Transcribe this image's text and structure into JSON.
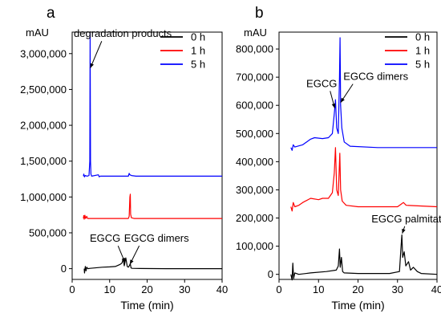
{
  "figure": {
    "panel_a_letter": "a",
    "panel_b_letter": "b"
  },
  "chart_data": [
    {
      "type": "line",
      "panel": "a",
      "xlabel": "Time (min)",
      "ylabel": "mAU",
      "xlim": [
        0,
        40
      ],
      "ylim": [
        -150000,
        3300000
      ],
      "x_ticks": [
        0,
        10,
        20,
        30,
        40
      ],
      "y_ticks": [
        0,
        500000,
        1000000,
        1500000,
        2000000,
        2500000,
        3000000
      ],
      "x_tick_labels": [
        "0",
        "10",
        "20",
        "30",
        "40"
      ],
      "y_tick_labels": [
        "0",
        "500,000",
        "1,000,000",
        "1,500,000",
        "2,000,000",
        "2,500,000",
        "3,000,000"
      ],
      "legend_placement": "top-right",
      "legend": [
        {
          "name": "0 h",
          "color": "#000000"
        },
        {
          "name": "1 h",
          "color": "#ff0000"
        },
        {
          "name": "5 h",
          "color": "#0000ff"
        }
      ],
      "series": [
        {
          "name": "0 h",
          "color": "#000000",
          "points": [
            [
              3.2,
              0
            ],
            [
              3.3,
              -60000
            ],
            [
              3.5,
              30000
            ],
            [
              3.7,
              -30000
            ],
            [
              3.9,
              20000
            ],
            [
              4.2,
              0
            ],
            [
              4.8,
              5000
            ],
            [
              6,
              10000
            ],
            [
              8,
              20000
            ],
            [
              10,
              25000
            ],
            [
              11.5,
              30000
            ],
            [
              12.8,
              60000
            ],
            [
              13.3,
              80000
            ],
            [
              13.6,
              140000
            ],
            [
              13.9,
              40000
            ],
            [
              14.3,
              150000
            ],
            [
              14.7,
              30000
            ],
            [
              15.0,
              20000
            ],
            [
              15.3,
              45000
            ],
            [
              15.5,
              70000
            ],
            [
              15.7,
              10000
            ],
            [
              16.0,
              5000
            ],
            [
              18,
              2000
            ],
            [
              25,
              0
            ],
            [
              40,
              0
            ]
          ]
        },
        {
          "name": "1 h",
          "color": "#ff0000",
          "points": [
            [
              3.0,
              700000
            ],
            [
              3.1,
              740000
            ],
            [
              3.2,
              690000
            ],
            [
              3.4,
              745000
            ],
            [
              3.6,
              700000
            ],
            [
              3.9,
              730000
            ],
            [
              4.1,
              700000
            ],
            [
              15.0,
              700000
            ],
            [
              15.2,
              730000
            ],
            [
              15.4,
              1000000
            ],
            [
              15.5,
              1040000
            ],
            [
              15.6,
              760000
            ],
            [
              15.8,
              710000
            ],
            [
              16.5,
              700000
            ],
            [
              40,
              700000
            ]
          ]
        },
        {
          "name": "5 h",
          "color": "#0000ff",
          "points": [
            [
              3.0,
              1290000
            ],
            [
              3.1,
              1320000
            ],
            [
              3.3,
              1280000
            ],
            [
              3.5,
              1300000
            ],
            [
              4.0,
              1290000
            ],
            [
              4.5,
              1300000
            ],
            [
              4.7,
              1500000
            ],
            [
              4.8,
              3280000
            ],
            [
              4.9,
              1500000
            ],
            [
              5.0,
              1320000
            ],
            [
              5.2,
              1290000
            ],
            [
              7.0,
              1310000
            ],
            [
              7.2,
              1280000
            ],
            [
              7.5,
              1290000
            ],
            [
              15.0,
              1290000
            ],
            [
              15.2,
              1330000
            ],
            [
              15.4,
              1310000
            ],
            [
              15.8,
              1300000
            ],
            [
              17,
              1290000
            ],
            [
              40,
              1290000
            ]
          ]
        }
      ],
      "annotations": [
        {
          "text": "degradation products",
          "x": 13.5,
          "y": 3230000,
          "arrow_to": [
            4.85,
            2800000
          ]
        },
        {
          "text": "EGCG",
          "x": 8.8,
          "y": 375000,
          "arrow_to": [
            14.1,
            85000
          ]
        },
        {
          "text": "EGCG dimers",
          "x": 22.5,
          "y": 375000,
          "arrow_to": [
            15.4,
            60000
          ]
        }
      ]
    },
    {
      "type": "line",
      "panel": "b",
      "xlabel": "Time (min)",
      "ylabel": "mAU",
      "xlim": [
        0,
        40
      ],
      "ylim": [
        -18000,
        860000
      ],
      "x_ticks": [
        0,
        10,
        20,
        30,
        40
      ],
      "y_ticks": [
        0,
        100000,
        200000,
        300000,
        400000,
        500000,
        600000,
        700000,
        800000
      ],
      "x_tick_labels": [
        "0",
        "10",
        "20",
        "30",
        "40"
      ],
      "y_tick_labels": [
        "0",
        "100,000",
        "200,000",
        "300,000",
        "400,000",
        "500,000",
        "600,000",
        "700,000",
        "800,000"
      ],
      "legend_placement": "top-right",
      "legend": [
        {
          "name": "0 h",
          "color": "#000000"
        },
        {
          "name": "1 h",
          "color": "#ff0000"
        },
        {
          "name": "5 h",
          "color": "#0000ff"
        }
      ],
      "series": [
        {
          "name": "0 h",
          "color": "#000000",
          "points": [
            [
              3.0,
              0
            ],
            [
              3.3,
              -20000
            ],
            [
              3.5,
              40000
            ],
            [
              3.7,
              -15000
            ],
            [
              4.0,
              5000
            ],
            [
              5,
              0
            ],
            [
              8,
              5000
            ],
            [
              12,
              10000
            ],
            [
              14.5,
              15000
            ],
            [
              15.0,
              30000
            ],
            [
              15.3,
              90000
            ],
            [
              15.5,
              25000
            ],
            [
              15.8,
              60000
            ],
            [
              16.1,
              10000
            ],
            [
              16.5,
              5000
            ],
            [
              20,
              3000
            ],
            [
              28,
              3000
            ],
            [
              30.5,
              10000
            ],
            [
              30.9,
              100000
            ],
            [
              31.1,
              140000
            ],
            [
              31.3,
              60000
            ],
            [
              31.7,
              80000
            ],
            [
              32.1,
              30000
            ],
            [
              32.8,
              45000
            ],
            [
              33.3,
              15000
            ],
            [
              34,
              25000
            ],
            [
              35,
              10000
            ],
            [
              36,
              3000
            ],
            [
              40,
              0
            ]
          ]
        },
        {
          "name": "1 h",
          "color": "#ff0000",
          "points": [
            [
              3.0,
              240000
            ],
            [
              3.3,
              225000
            ],
            [
              3.6,
              255000
            ],
            [
              4.0,
              240000
            ],
            [
              5,
              245000
            ],
            [
              6,
              255000
            ],
            [
              8,
              270000
            ],
            [
              10,
              265000
            ],
            [
              11,
              270000
            ],
            [
              12.5,
              270000
            ],
            [
              13.5,
              290000
            ],
            [
              14.0,
              360000
            ],
            [
              14.3,
              450000
            ],
            [
              14.6,
              300000
            ],
            [
              15.0,
              280000
            ],
            [
              15.4,
              430000
            ],
            [
              15.6,
              300000
            ],
            [
              16.0,
              260000
            ],
            [
              17,
              245000
            ],
            [
              20,
              240000
            ],
            [
              30,
              240000
            ],
            [
              31,
              250000
            ],
            [
              31.5,
              255000
            ],
            [
              32.2,
              245000
            ],
            [
              40,
              240000
            ]
          ]
        },
        {
          "name": "5 h",
          "color": "#0000ff",
          "points": [
            [
              3.0,
              450000
            ],
            [
              3.3,
              440000
            ],
            [
              3.6,
              460000
            ],
            [
              4.0,
              452000
            ],
            [
              6,
              460000
            ],
            [
              8,
              480000
            ],
            [
              9,
              485000
            ],
            [
              11,
              482000
            ],
            [
              12.5,
              485000
            ],
            [
              13.5,
              500000
            ],
            [
              14.0,
              570000
            ],
            [
              14.3,
              620000
            ],
            [
              14.6,
              520000
            ],
            [
              15.0,
              500000
            ],
            [
              15.3,
              700000
            ],
            [
              15.45,
              840000
            ],
            [
              15.6,
              600000
            ],
            [
              15.9,
              520000
            ],
            [
              16.5,
              470000
            ],
            [
              18,
              455000
            ],
            [
              25,
              450000
            ],
            [
              40,
              450000
            ]
          ]
        }
      ],
      "annotations": [
        {
          "text": "EGCG",
          "x": 10.8,
          "y": 665000,
          "arrow_to": [
            14.1,
            590000
          ]
        },
        {
          "text": "EGCG dimers",
          "x": 24.5,
          "y": 690000,
          "arrow_to": [
            15.6,
            610000
          ]
        },
        {
          "text": "EGCG palmitate",
          "x": 33.0,
          "y": 185000,
          "arrow_to": [
            31.2,
            145000
          ]
        }
      ]
    }
  ]
}
